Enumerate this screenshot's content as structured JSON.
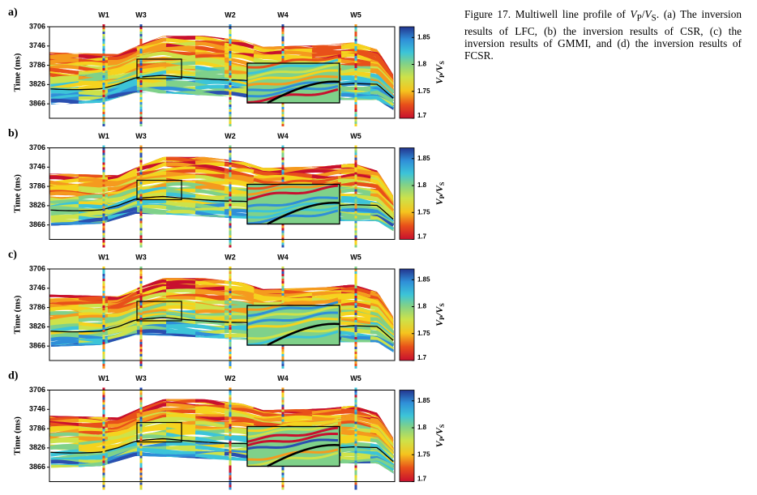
{
  "panels": [
    {
      "label": "a)"
    },
    {
      "label": "b)"
    },
    {
      "label": "c)"
    },
    {
      "label": "d)"
    }
  ],
  "wells": [
    "W1",
    "W3",
    "W2",
    "W4",
    "W5"
  ],
  "y_axis": {
    "label": "Time (ms)",
    "lim": [
      3706,
      3896
    ],
    "ticks": [
      3706,
      3746,
      3786,
      3826,
      3866
    ]
  },
  "colorbar": {
    "label": [
      "V",
      "P",
      "/",
      "V",
      "S"
    ],
    "lim": [
      1.7,
      1.87
    ],
    "ticks": [
      1.7,
      1.75,
      1.8,
      1.85
    ]
  },
  "caption": [
    "Figure 17. Multiwell line profile of ",
    "V",
    "P",
    "/",
    "V",
    "S",
    ". (a) The inversion results of LFC, (b) the inversion results of CSR, (c) the inversion results of GMMI, and (d) the inversion results of FCSR."
  ]
}
